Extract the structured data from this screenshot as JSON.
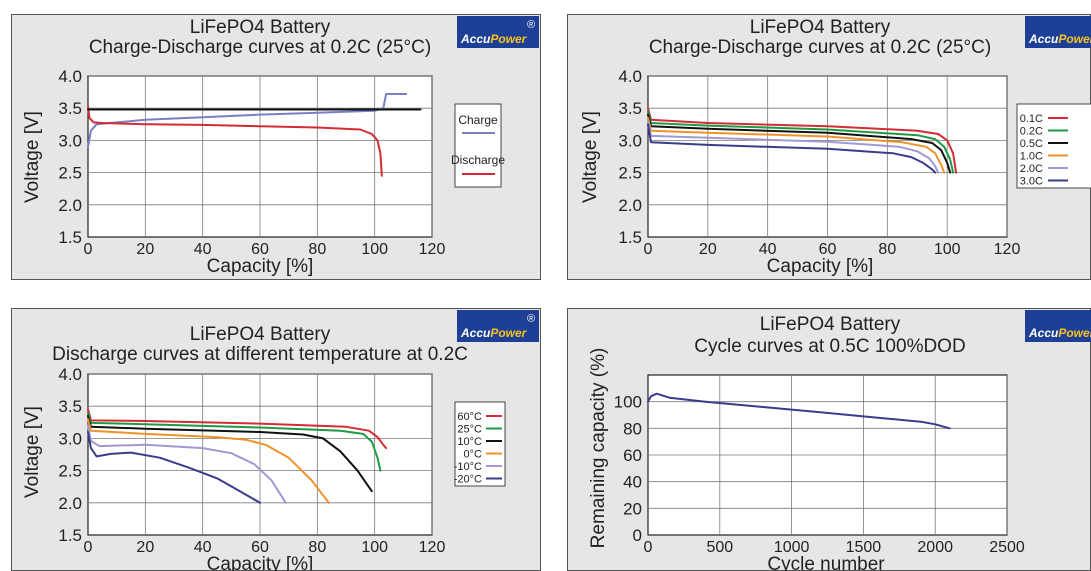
{
  "brand": {
    "name": "AccuPower",
    "reg_mark": "®"
  },
  "chart_data": [
    {
      "type": "line",
      "title": "LiFePO4 Battery",
      "subtitle": "Charge-Discharge curves at 0.2C (25°C)",
      "xlabel": "Capacity [%]",
      "ylabel": "Voltage [V]",
      "xlim": [
        0,
        120
      ],
      "ylim": [
        1.5,
        4.0
      ],
      "xticks": [
        "0",
        "20",
        "40",
        "60",
        "80",
        "100",
        "120"
      ],
      "yticks": [
        "1.5",
        "2.0",
        "2.5",
        "3.0",
        "3.5",
        "4.0"
      ],
      "grid": true,
      "legend_position": "right",
      "series": [
        {
          "name": "Charge",
          "color": "#7b7fc4",
          "points": [
            [
              0,
              2.9
            ],
            [
              1,
              3.15
            ],
            [
              3,
              3.25
            ],
            [
              10,
              3.28
            ],
            [
              20,
              3.32
            ],
            [
              40,
              3.36
            ],
            [
              60,
              3.4
            ],
            [
              80,
              3.43
            ],
            [
              100,
              3.46
            ],
            [
              103,
              3.5
            ],
            [
              104,
              3.72
            ],
            [
              111,
              3.72
            ]
          ]
        },
        {
          "name": "Discharge",
          "color": "#d42b35",
          "points": [
            [
              0,
              3.52
            ],
            [
              0.5,
              3.35
            ],
            [
              2,
              3.28
            ],
            [
              5,
              3.27
            ],
            [
              20,
              3.25
            ],
            [
              40,
              3.24
            ],
            [
              60,
              3.22
            ],
            [
              80,
              3.2
            ],
            [
              95,
              3.17
            ],
            [
              99,
              3.1
            ],
            [
              101,
              3.0
            ],
            [
              102,
              2.8
            ],
            [
              102.5,
              2.45
            ]
          ]
        },
        {
          "name": "",
          "color": "#111111",
          "points": [
            [
              0,
              3.48
            ],
            [
              116,
              3.48
            ]
          ]
        }
      ]
    },
    {
      "type": "line",
      "title": "LiFePO4 Battery",
      "subtitle": "Charge-Discharge curves at 0.2C (25°C)",
      "xlabel": "Capacity [%]",
      "ylabel": "Voltage [V]",
      "xlim": [
        0,
        120
      ],
      "ylim": [
        1.5,
        4.0
      ],
      "xticks": [
        "0",
        "20",
        "40",
        "60",
        "80",
        "100",
        "120"
      ],
      "yticks": [
        "1.5",
        "2.0",
        "2.5",
        "3.0",
        "3.5",
        "4.0"
      ],
      "grid": true,
      "legend_position": "right",
      "series": [
        {
          "name": "0.1C",
          "color": "#d42b35",
          "points": [
            [
              0,
              3.5
            ],
            [
              1,
              3.32
            ],
            [
              20,
              3.27
            ],
            [
              60,
              3.22
            ],
            [
              90,
              3.15
            ],
            [
              97,
              3.1
            ],
            [
              100,
              3.0
            ],
            [
              102,
              2.8
            ],
            [
              103,
              2.5
            ]
          ]
        },
        {
          "name": "0.2C",
          "color": "#1f9a44",
          "points": [
            [
              0,
              3.45
            ],
            [
              1,
              3.27
            ],
            [
              20,
              3.23
            ],
            [
              60,
              3.17
            ],
            [
              90,
              3.08
            ],
            [
              96,
              3.02
            ],
            [
              99,
              2.9
            ],
            [
              101,
              2.7
            ],
            [
              102,
              2.5
            ]
          ]
        },
        {
          "name": "0.5C",
          "color": "#111111",
          "points": [
            [
              0,
              3.4
            ],
            [
              1,
              3.22
            ],
            [
              20,
              3.18
            ],
            [
              60,
              3.12
            ],
            [
              88,
              3.02
            ],
            [
              95,
              2.96
            ],
            [
              98,
              2.85
            ],
            [
              100,
              2.65
            ],
            [
              101,
              2.5
            ]
          ]
        },
        {
          "name": "1.0C",
          "color": "#f0922a",
          "points": [
            [
              0,
              3.35
            ],
            [
              1,
              3.15
            ],
            [
              20,
              3.12
            ],
            [
              60,
              3.06
            ],
            [
              85,
              2.97
            ],
            [
              93,
              2.9
            ],
            [
              96,
              2.8
            ],
            [
              98,
              2.62
            ],
            [
              99,
              2.5
            ]
          ]
        },
        {
          "name": "2.0C",
          "color": "#9d9ad4",
          "points": [
            [
              0,
              3.3
            ],
            [
              1,
              3.07
            ],
            [
              20,
              3.04
            ],
            [
              60,
              2.98
            ],
            [
              84,
              2.9
            ],
            [
              90,
              2.83
            ],
            [
              94,
              2.72
            ],
            [
              96,
              2.6
            ],
            [
              97,
              2.5
            ]
          ]
        },
        {
          "name": "3.0C",
          "color": "#3a3c8c",
          "points": [
            [
              0,
              3.25
            ],
            [
              1,
              2.97
            ],
            [
              20,
              2.93
            ],
            [
              60,
              2.87
            ],
            [
              82,
              2.8
            ],
            [
              88,
              2.74
            ],
            [
              92,
              2.65
            ],
            [
              95,
              2.55
            ],
            [
              96,
              2.5
            ]
          ]
        }
      ]
    },
    {
      "type": "line",
      "title": "LiFePO4 Battery",
      "subtitle": "Discharge curves at different temperature at 0.2C",
      "xlabel": "Capacity [%]",
      "ylabel": "Voltage [V]",
      "xlim": [
        0,
        120
      ],
      "ylim": [
        1.5,
        4.0
      ],
      "xticks": [
        "0",
        "20",
        "40",
        "60",
        "80",
        "100",
        "120"
      ],
      "yticks": [
        "1.5",
        "2.0",
        "2.5",
        "3.0",
        "3.5",
        "4.0"
      ],
      "grid": true,
      "legend_position": "right",
      "series": [
        {
          "name": "60°C",
          "color": "#d42b35",
          "points": [
            [
              0,
              3.45
            ],
            [
              1,
              3.28
            ],
            [
              20,
              3.27
            ],
            [
              60,
              3.23
            ],
            [
              90,
              3.18
            ],
            [
              98,
              3.12
            ],
            [
              101,
              3.02
            ],
            [
              103,
              2.9
            ],
            [
              104,
              2.85
            ]
          ]
        },
        {
          "name": "25°C",
          "color": "#1f9a44",
          "points": [
            [
              0,
              3.4
            ],
            [
              1,
              3.24
            ],
            [
              20,
              3.22
            ],
            [
              60,
              3.17
            ],
            [
              88,
              3.12
            ],
            [
              96,
              3.07
            ],
            [
              99,
              2.95
            ],
            [
              101,
              2.7
            ],
            [
              102,
              2.5
            ]
          ]
        },
        {
          "name": "10°C",
          "color": "#111111",
          "points": [
            [
              0,
              3.35
            ],
            [
              1,
              3.18
            ],
            [
              20,
              3.15
            ],
            [
              60,
              3.1
            ],
            [
              75,
              3.06
            ],
            [
              82,
              3.0
            ],
            [
              88,
              2.8
            ],
            [
              94,
              2.5
            ],
            [
              99,
              2.18
            ]
          ]
        },
        {
          "name": "0°C",
          "color": "#f0922a",
          "points": [
            [
              0,
              3.3
            ],
            [
              1,
              3.12
            ],
            [
              20,
              3.07
            ],
            [
              45,
              3.02
            ],
            [
              55,
              2.98
            ],
            [
              62,
              2.9
            ],
            [
              70,
              2.7
            ],
            [
              78,
              2.35
            ],
            [
              84,
              2.0
            ]
          ]
        },
        {
          "name": "-10°C",
          "color": "#9d9ad4",
          "points": [
            [
              0,
              3.2
            ],
            [
              1,
              2.96
            ],
            [
              4,
              2.88
            ],
            [
              20,
              2.9
            ],
            [
              40,
              2.85
            ],
            [
              50,
              2.77
            ],
            [
              58,
              2.6
            ],
            [
              64,
              2.35
            ],
            [
              69,
              2.0
            ]
          ]
        },
        {
          "name": "-20°C",
          "color": "#3a3c8c",
          "points": [
            [
              0,
              3.1
            ],
            [
              1,
              2.85
            ],
            [
              3,
              2.72
            ],
            [
              8,
              2.76
            ],
            [
              15,
              2.78
            ],
            [
              25,
              2.7
            ],
            [
              35,
              2.55
            ],
            [
              45,
              2.38
            ],
            [
              53,
              2.18
            ],
            [
              60,
              2.0
            ]
          ]
        }
      ]
    },
    {
      "type": "line",
      "title": "LiFePO4 Battery",
      "subtitle": "Cycle curves at 0.5C  100%DOD",
      "xlabel": "Cycle number",
      "ylabel": "Remaining capacity (%)",
      "xlim": [
        0,
        2500
      ],
      "ylim": [
        0,
        120
      ],
      "xticks": [
        "0",
        "500",
        "1000",
        "1500",
        "2000",
        "2500"
      ],
      "yticks": [
        "0",
        "20",
        "40",
        "60",
        "80",
        "100"
      ],
      "grid": true,
      "series": [
        {
          "name": "",
          "color": "#3a3c8c",
          "points": [
            [
              0,
              100
            ],
            [
              20,
              104
            ],
            [
              60,
              106
            ],
            [
              150,
              103
            ],
            [
              400,
              100
            ],
            [
              800,
              96
            ],
            [
              1200,
              92
            ],
            [
              1600,
              88
            ],
            [
              1900,
              85
            ],
            [
              2000,
              83
            ],
            [
              2100,
              80
            ]
          ]
        }
      ]
    }
  ]
}
